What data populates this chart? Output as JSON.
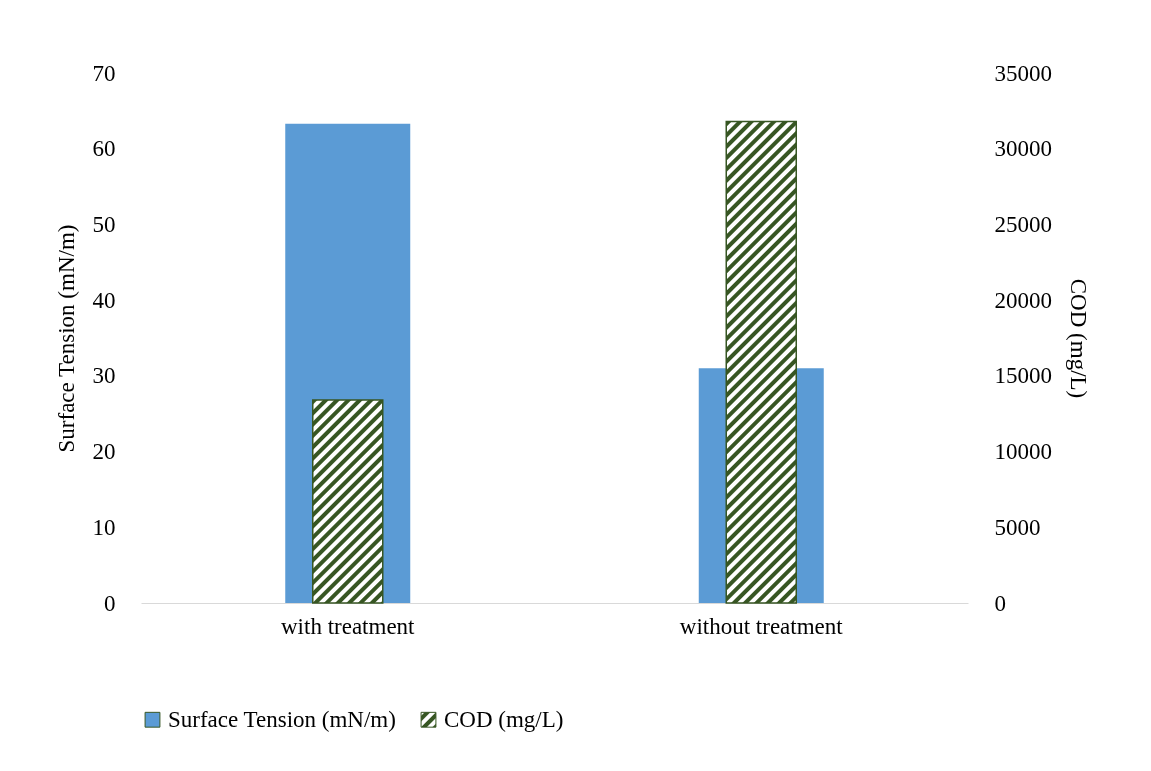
{
  "chart_data": {
    "type": "bar",
    "xlabel": null,
    "ylabel": "Surface Tension (mN/m)",
    "y2label": "COD (mg/L)",
    "categories": [
      "with treatment",
      "without treatment"
    ],
    "series": [
      {
        "name": "Surface Tension (mN/m)",
        "color": "#5b9bd5",
        "values": [
          63.3,
          31.0
        ]
      },
      {
        "name": "COD (mg/L)",
        "color": "#375623",
        "values": [
          13400,
          31800
        ],
        "axis": "y2"
      }
    ],
    "ylim": [
      0,
      70
    ],
    "yticks": [
      0,
      10,
      20,
      30,
      40,
      50,
      60,
      70
    ],
    "y2lim": [
      0,
      35000
    ],
    "y2ticks": [
      0,
      5000,
      10000,
      15000,
      20000,
      25000,
      30000,
      35000
    ],
    "legend": "bottom",
    "grid": false
  }
}
